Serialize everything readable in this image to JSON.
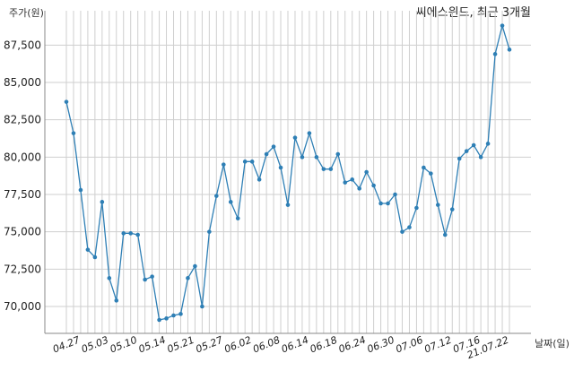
{
  "chart_data": {
    "type": "line",
    "title": "씨에스윈드, 최근 3개월",
    "ylabel": "주가(원)",
    "xlabel": "날짜(일)",
    "ylim": [
      68200,
      89800
    ],
    "yticks": [
      70000,
      72500,
      75000,
      77500,
      80000,
      82500,
      85000,
      87500
    ],
    "ytick_labels": [
      "70,000",
      "72,500",
      "75,000",
      "77,500",
      "80,000",
      "82,500",
      "85,000",
      "87,500"
    ],
    "grid": true,
    "xtick_labels": [
      "04.27",
      "05.03",
      "05.10",
      "05.14",
      "05.21",
      "05.27",
      "06.02",
      "06.08",
      "06.14",
      "06.18",
      "06.24",
      "06.30",
      "07.06",
      "07.12",
      "07.16",
      "21.07.22"
    ],
    "xtick_index": [
      2,
      6,
      10,
      14,
      18,
      22,
      26,
      30,
      34,
      38,
      42,
      46,
      50,
      54,
      58,
      62
    ],
    "series": [
      {
        "color": "#2e7fb5",
        "values": [
          83700,
          81600,
          77800,
          73800,
          73300,
          77000,
          71900,
          70400,
          74900,
          74900,
          74800,
          71800,
          72000,
          69100,
          69200,
          69400,
          69500,
          71900,
          72700,
          70000,
          75000,
          77400,
          79500,
          77000,
          75900,
          79700,
          79700,
          78500,
          80200,
          80700,
          79300,
          76800,
          81300,
          80000,
          81600,
          80000,
          79200,
          79200,
          80200,
          78300,
          78500,
          77900,
          79000,
          78100,
          76900,
          76900,
          77500,
          75000,
          75300,
          76600,
          79300,
          78900,
          76800,
          74800,
          76500,
          79900,
          80400,
          80800,
          80000,
          80900,
          86900,
          88800,
          87200
        ]
      }
    ]
  }
}
